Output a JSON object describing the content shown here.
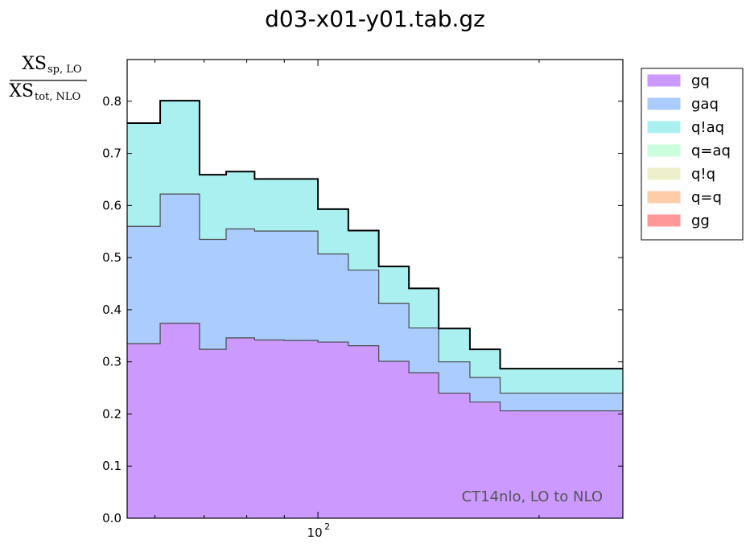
{
  "chart_data": {
    "type": "area",
    "title": "d03-x01-y01.tab.gz",
    "ylabel": {
      "numerator": "XS",
      "numerator_sub": "sp, LO",
      "denominator": "XS",
      "denominator_sub": "tot, NLO"
    },
    "xscale": "log",
    "xlim": [
      55,
      260
    ],
    "ylim": [
      0.0,
      0.88
    ],
    "x_tick_label": {
      "base": "10",
      "exp": "2",
      "value": 100
    },
    "y_ticks": [
      "0.0",
      "0.1",
      "0.2",
      "0.3",
      "0.4",
      "0.5",
      "0.6",
      "0.7",
      "0.8"
    ],
    "y_tick_values": [
      0.0,
      0.1,
      0.2,
      0.3,
      0.4,
      0.5,
      0.6,
      0.7,
      0.8
    ],
    "bin_edges": [
      55,
      61,
      69,
      75,
      82,
      90,
      100,
      110,
      121,
      133,
      146,
      161,
      177,
      200,
      260
    ],
    "series": [
      {
        "name": "gq",
        "color": "#cc99ff",
        "values": [
          0.335,
          0.374,
          0.324,
          0.346,
          0.342,
          0.341,
          0.338,
          0.331,
          0.301,
          0.279,
          0.24,
          0.223,
          0.206,
          0.206
        ]
      },
      {
        "name": "gaq",
        "color": "#aaccff",
        "values": [
          0.225,
          0.248,
          0.211,
          0.209,
          0.209,
          0.21,
          0.169,
          0.145,
          0.111,
          0.086,
          0.06,
          0.047,
          0.034,
          0.034
        ]
      },
      {
        "name": "q!aq",
        "color": "#aaf0f0",
        "values": [
          0.198,
          0.179,
          0.124,
          0.11,
          0.1,
          0.1,
          0.086,
          0.076,
          0.071,
          0.076,
          0.064,
          0.054,
          0.047,
          0.047
        ]
      },
      {
        "name": "q=aq",
        "color": "#ccffdd",
        "values": [
          0,
          0,
          0,
          0,
          0,
          0,
          0,
          0,
          0,
          0,
          0,
          0,
          0,
          0
        ]
      },
      {
        "name": "q!q",
        "color": "#eef0cc",
        "values": [
          0,
          0,
          0,
          0,
          0,
          0,
          0,
          0,
          0,
          0,
          0,
          0,
          0,
          0
        ]
      },
      {
        "name": "q=q",
        "color": "#ffccaa",
        "values": [
          0,
          0,
          0,
          0,
          0,
          0,
          0,
          0,
          0,
          0,
          0,
          0,
          0,
          0
        ]
      },
      {
        "name": "gg",
        "color": "#ff9999",
        "values": [
          0,
          0,
          0,
          0,
          0,
          0,
          0,
          0,
          0,
          0,
          0,
          0,
          0,
          0
        ]
      }
    ],
    "legend": {
      "placement": "outside-right"
    },
    "annotation": "CT14nlo, LO to NLO",
    "grid": false
  }
}
